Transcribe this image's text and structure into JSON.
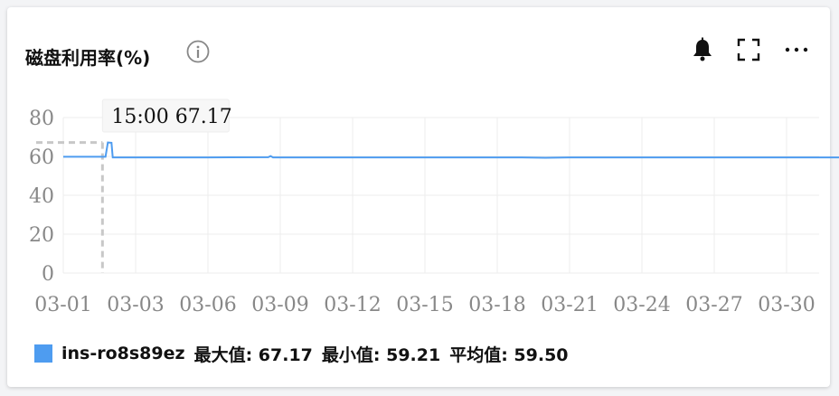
{
  "header": {
    "title": "磁盘利用率(%)",
    "info_icon": "info-circle-icon",
    "tools": [
      "bell-icon",
      "fullscreen-icon",
      "more-icon"
    ]
  },
  "tooltip": {
    "text": "15:00 67.17"
  },
  "legend": {
    "color": "#4e9cf0",
    "series_name": "ins-ro8s89ez",
    "max_text": "最大值: 67.17",
    "min_text": "最小值: 59.21",
    "avg_text": "平均值: 59.50"
  },
  "chart_data": {
    "type": "line",
    "y_ticks": [
      0,
      20,
      40,
      60,
      80
    ],
    "ylim": [
      0,
      80
    ],
    "x_ticks": [
      "03-01",
      "03-03",
      "03-06",
      "03-09",
      "03-12",
      "03-15",
      "03-18",
      "03-21",
      "03-24",
      "03-27",
      "03-30"
    ],
    "grid": true,
    "series": [
      {
        "name": "ins-ro8s89ez",
        "color": "#4e9cf0",
        "points": [
          [
            0.0,
            59.8
          ],
          [
            1.5,
            59.8
          ],
          [
            1.75,
            59.8
          ],
          [
            1.85,
            67.17
          ],
          [
            2.0,
            67.0
          ],
          [
            2.05,
            59.5
          ],
          [
            4.5,
            59.5
          ],
          [
            6.0,
            59.5
          ],
          [
            8.5,
            59.6
          ],
          [
            8.6,
            60.2
          ],
          [
            8.7,
            59.5
          ],
          [
            12.0,
            59.5
          ],
          [
            16.0,
            59.5
          ],
          [
            19.0,
            59.5
          ],
          [
            20.0,
            59.3
          ],
          [
            21.0,
            59.5
          ],
          [
            25.0,
            59.5
          ],
          [
            28.0,
            59.5
          ],
          [
            31.0,
            59.5
          ],
          [
            34.5,
            59.5
          ]
        ]
      }
    ],
    "highlight": {
      "x_label": "15:00",
      "value": 67.17
    }
  }
}
